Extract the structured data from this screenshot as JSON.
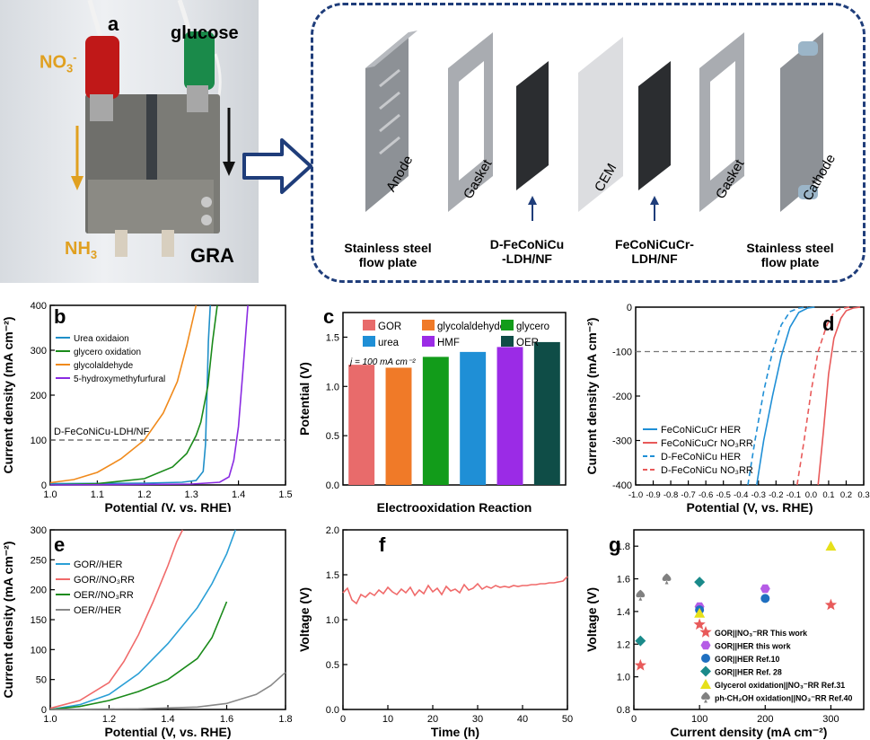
{
  "panel_a": {
    "label": "a",
    "no3": "NO",
    "no3_sub": "3",
    "no3_sup": "-",
    "glucose": "glucose",
    "nh3": "NH",
    "nh3_sub": "3",
    "gra": "GRA"
  },
  "schematic": {
    "components": [
      "Anode",
      "Gasket",
      "CEM",
      "Gasket",
      "Cathode"
    ],
    "captions": {
      "left_1": "Stainless steel",
      "left_2": "flow plate",
      "mid1_1": "D-FeCoNiCu",
      "mid1_2": "-LDH/NF",
      "mid2_1": "FeCoNiCuCr-",
      "mid2_2": "LDH/NF",
      "right_1": "Stainless steel",
      "right_2": "flow plate"
    }
  },
  "chart_data": [
    {
      "panel": "b",
      "type": "line",
      "xlabel": "Potential (V, vs. RHE)",
      "ylabel": "Current density (mA cm⁻²)",
      "xlim": [
        1.0,
        1.5
      ],
      "ylim": [
        0,
        400
      ],
      "xticks": [
        "1.0",
        "1.1",
        "1.2",
        "1.3",
        "1.4",
        "1.5"
      ],
      "yticks": [
        "0",
        "100",
        "200",
        "300",
        "400"
      ],
      "annotation": "D-FeCoNiCu-LDH/NF",
      "reference_line_y": 100,
      "legend": [
        "Urea oxidaion",
        "glycero oxidation",
        "glycolaldehyde",
        "5-hydroxymethyfurfural"
      ],
      "series": [
        {
          "name": "Urea oxidaion",
          "color": "#1f8fc8",
          "x": [
            1.0,
            1.2,
            1.28,
            1.31,
            1.325,
            1.33,
            1.333,
            1.336,
            1.34
          ],
          "y": [
            3,
            4,
            6,
            10,
            30,
            90,
            200,
            320,
            400
          ]
        },
        {
          "name": "glycero oxidation",
          "color": "#1a8a1a",
          "x": [
            1.0,
            1.1,
            1.2,
            1.26,
            1.29,
            1.31,
            1.32,
            1.335,
            1.345,
            1.355
          ],
          "y": [
            0,
            3,
            14,
            40,
            70,
            110,
            140,
            220,
            320,
            400
          ]
        },
        {
          "name": "glycolaldehyde",
          "color": "#f08a1c",
          "x": [
            1.0,
            1.05,
            1.1,
            1.15,
            1.2,
            1.24,
            1.27,
            1.29,
            1.31
          ],
          "y": [
            5,
            12,
            28,
            58,
            100,
            160,
            230,
            310,
            400
          ]
        },
        {
          "name": "5-hydroxymethyfurfural",
          "color": "#8a2be2",
          "x": [
            1.0,
            1.3,
            1.36,
            1.38,
            1.39,
            1.4,
            1.41,
            1.42
          ],
          "y": [
            0,
            2,
            6,
            18,
            55,
            130,
            260,
            400
          ]
        }
      ]
    },
    {
      "panel": "c",
      "type": "bar",
      "xlabel": "Electrooxidation Reaction",
      "ylabel": "Potential (V)",
      "ylim": [
        0.0,
        1.75
      ],
      "yticks": [
        "0.0",
        "0.5",
        "1.0",
        "1.5"
      ],
      "annotation": "j = 100 mA cm⁻²",
      "categories": [
        "GOR",
        "glycolaldehyde",
        "glycero",
        "urea",
        "HMF",
        "OER"
      ],
      "values": [
        1.22,
        1.19,
        1.3,
        1.35,
        1.4,
        1.45
      ],
      "colors": [
        "#e86b6b",
        "#f07a28",
        "#129c1a",
        "#1f8fd6",
        "#9b2be6",
        "#0f4d47"
      ]
    },
    {
      "panel": "d",
      "type": "line",
      "xlabel": "Potential (V, vs. RHE)",
      "ylabel": "Current density (mA cm⁻²)",
      "xlim": [
        -1.0,
        0.3
      ],
      "ylim": [
        -400,
        0
      ],
      "xticks": [
        "-1.0",
        "-0.9",
        "-0.8",
        "-0.7",
        "-0.6",
        "-0.5",
        "-0.4",
        "-0.3",
        "-0.2",
        "-0.1",
        "0.0",
        "0.1",
        "0.2",
        "0.3"
      ],
      "yticks": [
        "0",
        "-100",
        "-200",
        "-300",
        "-400"
      ],
      "reference_line_y": -100,
      "legend": [
        "FeCoNiCuCr HER",
        "FeCoNiCuCr NO₃RR",
        "D-FeCoNiCu HER",
        "D-FeCoNiCu NO₃RR"
      ],
      "series": [
        {
          "name": "FeCoNiCuCr HER",
          "color": "#1f8fd6",
          "dash": false,
          "x": [
            -0.31,
            -0.27,
            -0.22,
            -0.17,
            -0.12,
            -0.07,
            -0.02,
            0.02
          ],
          "y": [
            -400,
            -300,
            -200,
            -110,
            -45,
            -12,
            -2,
            0
          ]
        },
        {
          "name": "FeCoNiCuCr NO₃RR",
          "color": "#e85a5a",
          "dash": false,
          "x": [
            0.04,
            0.07,
            0.1,
            0.13,
            0.17,
            0.2,
            0.24,
            0.28
          ],
          "y": [
            -400,
            -280,
            -150,
            -70,
            -25,
            -8,
            -2,
            0
          ]
        },
        {
          "name": "D-FeCoNiCu HER",
          "color": "#1f8fd6",
          "dash": true,
          "x": [
            -0.36,
            -0.32,
            -0.27,
            -0.22,
            -0.17,
            -0.12,
            -0.07,
            -0.02
          ],
          "y": [
            -400,
            -300,
            -190,
            -100,
            -40,
            -10,
            -2,
            0
          ]
        },
        {
          "name": "D-FeCoNiCu NO₃RR",
          "color": "#e85a5a",
          "dash": true,
          "x": [
            -0.08,
            -0.04,
            0.0,
            0.04,
            0.09,
            0.13,
            0.17,
            0.22
          ],
          "y": [
            -400,
            -300,
            -190,
            -100,
            -40,
            -12,
            -3,
            0
          ]
        }
      ]
    },
    {
      "panel": "e",
      "type": "line",
      "xlabel": "Potential (V, vs. RHE)",
      "ylabel": "Current density (mA cm⁻²)",
      "xlim": [
        1.0,
        1.8
      ],
      "ylim": [
        0,
        300
      ],
      "xticks": [
        "1.0",
        "1.2",
        "1.4",
        "1.6",
        "1.8"
      ],
      "yticks": [
        "0",
        "50",
        "100",
        "150",
        "200",
        "250",
        "300"
      ],
      "legend": [
        "GOR//HER",
        "GOR//NO₃RR",
        "OER//NO₃RR",
        "OER//HER"
      ],
      "series": [
        {
          "name": "GOR//HER",
          "color": "#2a9fd6",
          "x": [
            1.0,
            1.1,
            1.2,
            1.3,
            1.4,
            1.5,
            1.55,
            1.6,
            1.63
          ],
          "y": [
            0,
            8,
            25,
            60,
            110,
            170,
            210,
            260,
            300
          ]
        },
        {
          "name": "GOR//NO₃RR",
          "color": "#f06a6a",
          "x": [
            1.0,
            1.1,
            1.2,
            1.25,
            1.3,
            1.35,
            1.4,
            1.43,
            1.45
          ],
          "y": [
            2,
            15,
            45,
            80,
            125,
            180,
            240,
            280,
            300
          ]
        },
        {
          "name": "OER//NO₃RR",
          "color": "#1a8a1a",
          "x": [
            1.0,
            1.1,
            1.2,
            1.3,
            1.4,
            1.5,
            1.55,
            1.6
          ],
          "y": [
            0,
            5,
            15,
            30,
            50,
            85,
            120,
            180
          ]
        },
        {
          "name": "OER//HER",
          "color": "#888888",
          "x": [
            1.0,
            1.3,
            1.5,
            1.6,
            1.7,
            1.75,
            1.8
          ],
          "y": [
            0,
            1,
            4,
            10,
            25,
            40,
            62
          ]
        }
      ]
    },
    {
      "panel": "f",
      "type": "line",
      "xlabel": "Time (h)",
      "ylabel": "Voltage (V)",
      "xlim": [
        0,
        50
      ],
      "ylim": [
        0.0,
        2.0
      ],
      "xticks": [
        "0",
        "10",
        "20",
        "30",
        "40",
        "50"
      ],
      "yticks": [
        "0.0",
        "0.5",
        "1.0",
        "1.5",
        "2.0"
      ],
      "series": [
        {
          "name": "",
          "color": "#f06a6a",
          "x": [
            0,
            1,
            2,
            3,
            4,
            5,
            6,
            7,
            8,
            9,
            10,
            11,
            12,
            13,
            14,
            15,
            16,
            17,
            18,
            19,
            20,
            21,
            22,
            23,
            24,
            25,
            26,
            27,
            28,
            29,
            30,
            31,
            32,
            33,
            34,
            35,
            36,
            37,
            38,
            39,
            40,
            41,
            42,
            43,
            44,
            45,
            46,
            47,
            48,
            49,
            50
          ],
          "y": [
            1.3,
            1.35,
            1.22,
            1.18,
            1.28,
            1.25,
            1.3,
            1.27,
            1.33,
            1.29,
            1.36,
            1.31,
            1.28,
            1.34,
            1.3,
            1.36,
            1.27,
            1.33,
            1.29,
            1.38,
            1.31,
            1.35,
            1.28,
            1.37,
            1.32,
            1.34,
            1.3,
            1.39,
            1.33,
            1.35,
            1.4,
            1.34,
            1.37,
            1.35,
            1.38,
            1.36,
            1.37,
            1.36,
            1.38,
            1.37,
            1.38,
            1.38,
            1.39,
            1.39,
            1.4,
            1.4,
            1.41,
            1.41,
            1.42,
            1.43,
            1.48
          ]
        }
      ]
    },
    {
      "panel": "g",
      "type": "scatter",
      "xlabel": "Current density (mA cm⁻²)",
      "ylabel": "Voltage (V)",
      "xlim": [
        0,
        350
      ],
      "ylim": [
        0.8,
        1.9
      ],
      "xticks": [
        "0",
        "100",
        "200",
        "300"
      ],
      "yticks": [
        "0.8",
        "1.0",
        "1.2",
        "1.4",
        "1.6",
        "1.8"
      ],
      "series": [
        {
          "name": "GOR||NO₃⁻RR This work",
          "color": "#e85a5a",
          "marker": "star",
          "x": [
            10,
            100,
            300
          ],
          "y": [
            1.07,
            1.32,
            1.44
          ]
        },
        {
          "name": "GOR||HER this work",
          "color": "#b55ce6",
          "marker": "hexagon",
          "x": [
            100,
            200
          ],
          "y": [
            1.43,
            1.54
          ]
        },
        {
          "name": "GOR||HER Ref.10",
          "color": "#1f6fc0",
          "marker": "circle",
          "x": [
            100,
            200
          ],
          "y": [
            1.41,
            1.48
          ]
        },
        {
          "name": "GOR||HER Ref. 28",
          "color": "#1a8a8a",
          "marker": "diamond",
          "x": [
            10,
            100
          ],
          "y": [
            1.22,
            1.58
          ]
        },
        {
          "name": "Glycerol oxidation||NO₃⁻RR Ref.31",
          "color": "#e6e01a",
          "marker": "triangle",
          "x": [
            100,
            300
          ],
          "y": [
            1.39,
            1.8
          ]
        },
        {
          "name": "ph-CH₂OH oxidation||NO₃⁻RR Ref.40",
          "color": "#808080",
          "marker": "spade",
          "x": [
            10,
            50
          ],
          "y": [
            1.5,
            1.6
          ]
        }
      ]
    }
  ]
}
